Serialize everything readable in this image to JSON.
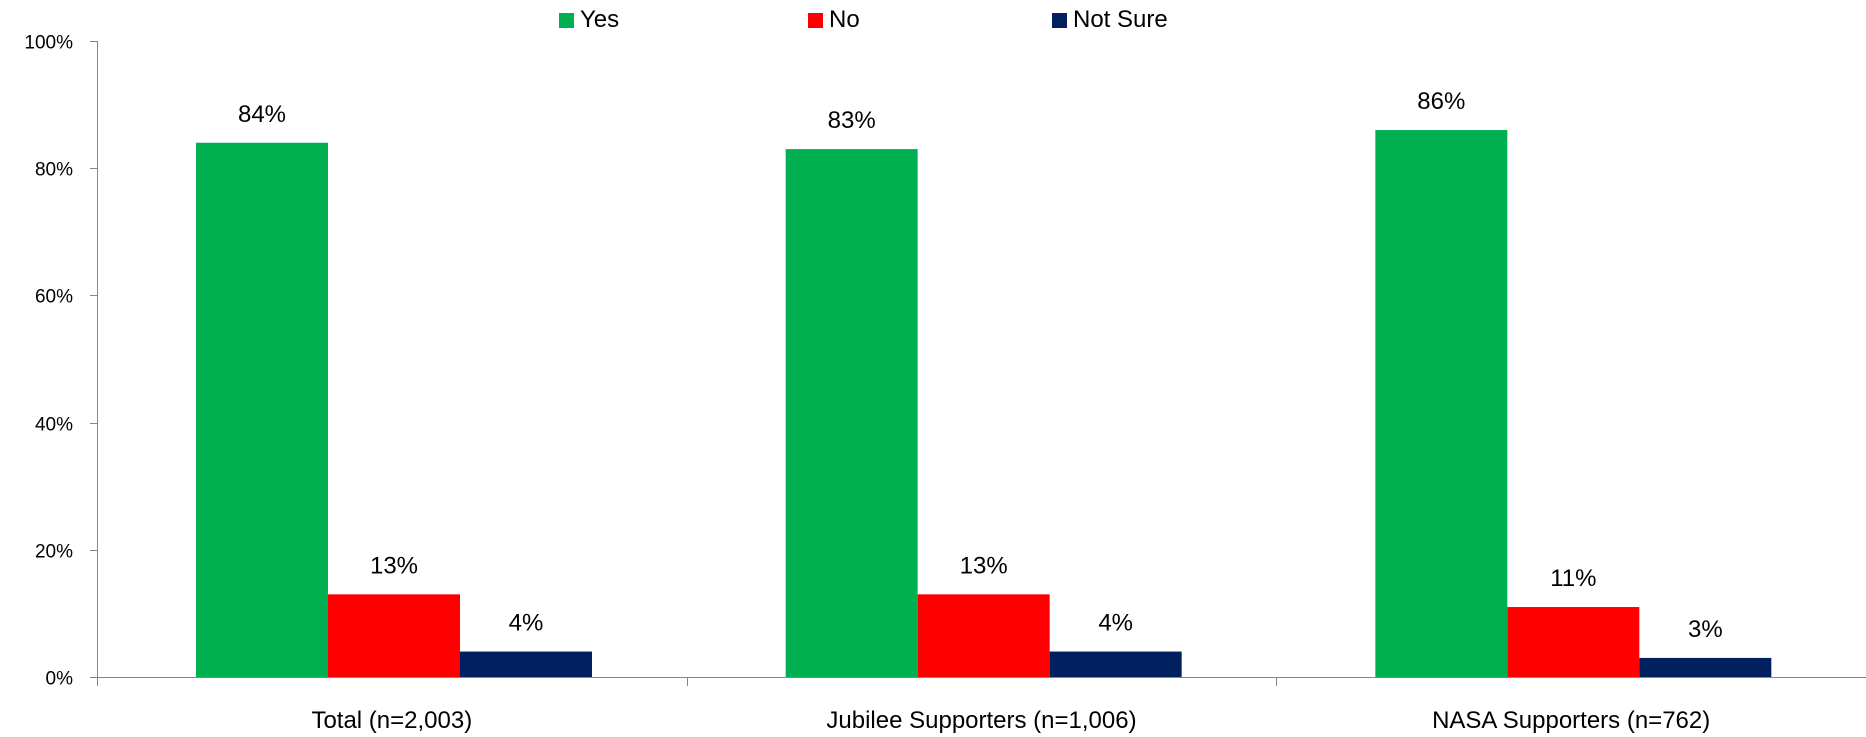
{
  "chart_data": {
    "type": "bar",
    "categories": [
      "Total (n=2,003)",
      "Jubilee Supporters (n=1,006)",
      "NASA Supporters (n=762)"
    ],
    "series": [
      {
        "name": "Yes",
        "color": "#00b050",
        "values": [
          84,
          83,
          86
        ],
        "labels": [
          "84%",
          "83%",
          "86%"
        ]
      },
      {
        "name": "No",
        "color": "#ff0000",
        "values": [
          13,
          13,
          11
        ],
        "labels": [
          "13%",
          "13%",
          "11%"
        ]
      },
      {
        "name": "Not Sure",
        "color": "#002060",
        "values": [
          4,
          4,
          3
        ],
        "labels": [
          "4%",
          "4%",
          "3%"
        ]
      }
    ],
    "ylim": [
      0,
      100
    ],
    "yticks": [
      0,
      20,
      40,
      60,
      80,
      100
    ],
    "ytick_labels": [
      "0%",
      "20%",
      "40%",
      "60%",
      "80%",
      "100%"
    ],
    "legend_position": "top-center",
    "grid": false
  }
}
